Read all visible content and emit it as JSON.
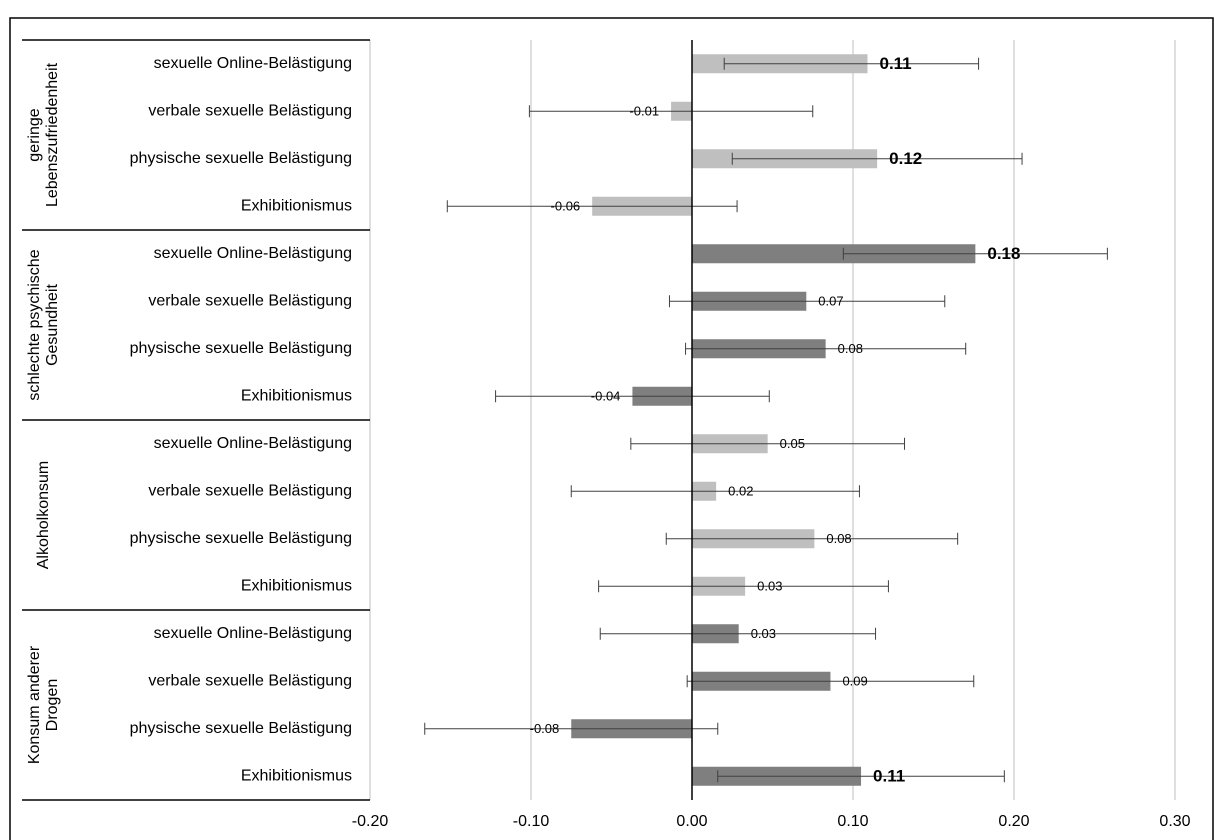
{
  "chart_data": {
    "type": "bar",
    "orientation": "horizontal",
    "xlim": [
      -0.2,
      0.3
    ],
    "xticks": [
      {
        "value": -0.2,
        "label": "-0.20"
      },
      {
        "value": -0.1,
        "label": "-0.10"
      },
      {
        "value": 0,
        "label": "0.00"
      },
      {
        "value": 0.1,
        "label": "0.10"
      },
      {
        "value": 0.2,
        "label": "0.20"
      },
      {
        "value": 0.3,
        "label": "0.30"
      }
    ],
    "grid": true,
    "groups": [
      {
        "name": [
          "geringe",
          "Lebenszufriedenheit"
        ],
        "color": "#bfbfbf",
        "categories": [
          "sexuelle Online-Belästigung",
          "verbale sexuelle Belästigung",
          "physische sexuelle Belästigung",
          "Exhibitionismus"
        ],
        "values": [
          0.109,
          -0.013,
          0.115,
          -0.062
        ],
        "ci_low": [
          0.02,
          -0.101,
          0.025,
          -0.152
        ],
        "ci_high": [
          0.178,
          0.075,
          0.205,
          0.028
        ],
        "value_labels": [
          "0.11",
          "-0.01",
          "0.12",
          "-0.06"
        ],
        "label_bold": [
          true,
          false,
          true,
          false
        ]
      },
      {
        "name": [
          "schlechte psychische",
          "Gesundheit"
        ],
        "color": "#7f7f7f",
        "categories": [
          "sexuelle Online-Belästigung",
          "verbale sexuelle Belästigung",
          "physische sexuelle Belästigung",
          "Exhibitionismus"
        ],
        "values": [
          0.176,
          0.071,
          0.083,
          -0.037
        ],
        "ci_low": [
          0.094,
          -0.014,
          -0.004,
          -0.122
        ],
        "ci_high": [
          0.258,
          0.157,
          0.17,
          0.048
        ],
        "value_labels": [
          "0.18",
          "0.07",
          "0.08",
          "-0.04"
        ],
        "label_bold": [
          true,
          false,
          false,
          false
        ]
      },
      {
        "name": [
          "Alkoholkonsum"
        ],
        "color": "#bfbfbf",
        "categories": [
          "sexuelle Online-Belästigung",
          "verbale sexuelle Belästigung",
          "physische sexuelle Belästigung",
          "Exhibitionismus"
        ],
        "values": [
          0.047,
          0.015,
          0.076,
          0.033
        ],
        "ci_low": [
          -0.038,
          -0.075,
          -0.016,
          -0.058
        ],
        "ci_high": [
          0.132,
          0.104,
          0.165,
          0.122
        ],
        "value_labels": [
          "0.05",
          "0.02",
          "0.08",
          "0.03"
        ],
        "label_bold": [
          false,
          false,
          false,
          false
        ]
      },
      {
        "name": [
          "Konsum anderer",
          "Drogen"
        ],
        "color": "#7f7f7f",
        "categories": [
          "sexuelle Online-Belästigung",
          "verbale sexuelle Belästigung",
          "physische sexuelle Belästigung",
          "Exhibitionismus"
        ],
        "values": [
          0.029,
          0.086,
          -0.075,
          0.105
        ],
        "ci_low": [
          -0.057,
          -0.003,
          -0.166,
          0.016
        ],
        "ci_high": [
          0.114,
          0.175,
          0.016,
          0.194
        ],
        "value_labels": [
          "0.03",
          "0.09",
          "-0.08",
          "0.11"
        ],
        "label_bold": [
          false,
          false,
          false,
          true
        ]
      }
    ]
  }
}
